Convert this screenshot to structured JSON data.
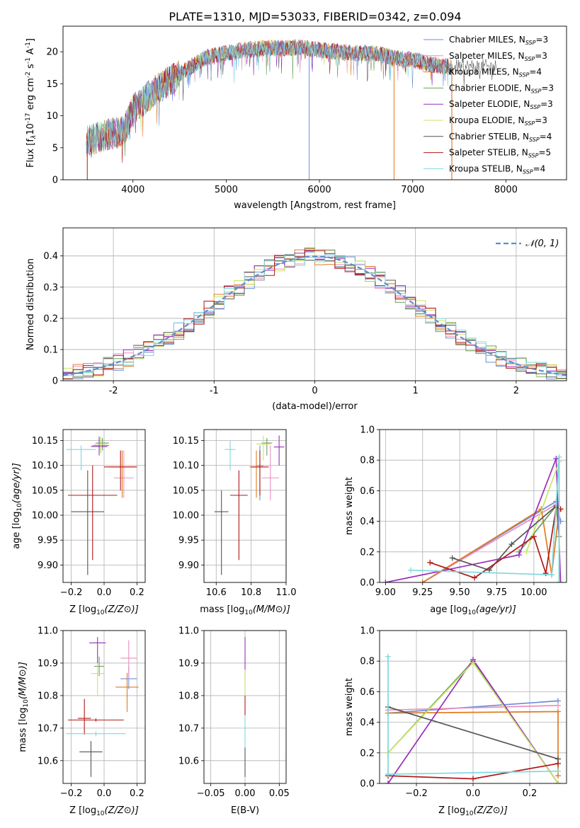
{
  "title": "PLATE=1310, MJD=53033, FIBERID=0342, z=0.094",
  "model_names": [
    "Chabrier MILES",
    "Salpeter MILES",
    "Kroupa MILES",
    "Chabrier ELODIE",
    "Salpeter ELODIE",
    "Kroupa ELODIE",
    "Chabrier STELIB",
    "Salpeter STELIB",
    "Kroupa STELIB"
  ],
  "model_colors": [
    "#6a8fd6",
    "#e98fc0",
    "#e07b22",
    "#6b9e5b",
    "#9a2dbb",
    "#c8e46a",
    "#555555",
    "#b01818",
    "#7fd8dd"
  ],
  "chart_data": [
    {
      "id": "spectrum",
      "type": "line",
      "xlabel": "wavelength [Angstrom, rest frame]",
      "ylabel_parts": [
        "Flux [f",
        "λ",
        "10",
        "-17",
        " erg cm",
        "-2",
        " s",
        "-1",
        " A",
        "-1",
        "]"
      ],
      "xlim": [
        3250,
        8650
      ],
      "ylim": [
        0,
        24
      ],
      "xticks": [
        4000,
        5000,
        6000,
        7000,
        8000
      ],
      "yticks": [
        0,
        5,
        10,
        15,
        20
      ],
      "continuum_x": [
        3500,
        3700,
        3900,
        4000,
        4200,
        4400,
        4600,
        4800,
        5000,
        5200,
        5400,
        5600,
        5800,
        6000,
        6200,
        6400,
        6600,
        6800,
        7000,
        7200,
        7400
      ],
      "continuum_y": [
        6,
        7,
        7.5,
        11,
        13.5,
        15.5,
        17.5,
        19.2,
        19.8,
        20.3,
        20.5,
        20.6,
        20.7,
        20.3,
        20.0,
        19.8,
        19.8,
        19.0,
        18.8,
        18.0,
        17.6
      ],
      "legend": [
        {
          "label": "Chabrier MILES, N",
          "sub": "SSP",
          "suffix": "=3"
        },
        {
          "label": "Salpeter MILES, N",
          "sub": "SSP",
          "suffix": "=3"
        },
        {
          "label": "Kroupa MILES, N",
          "sub": "SSP",
          "suffix": "=4"
        },
        {
          "label": "Chabrier ELODIE, N",
          "sub": "SSP",
          "suffix": "=3"
        },
        {
          "label": "Salpeter ELODIE, N",
          "sub": "SSP",
          "suffix": "=3"
        },
        {
          "label": "Kroupa ELODIE, N",
          "sub": "SSP",
          "suffix": "=3"
        },
        {
          "label": "Chabrier STELIB, N",
          "sub": "SSP",
          "suffix": "=4"
        },
        {
          "label": "Salpeter STELIB, N",
          "sub": "SSP",
          "suffix": "=5"
        },
        {
          "label": "Kroupa STELIB, N",
          "sub": "SSP",
          "suffix": "=4"
        }
      ]
    },
    {
      "id": "residuals",
      "type": "histogram",
      "xlabel": "(data-model)/error",
      "ylabel": "Normed distribution",
      "xlim": [
        -2.5,
        2.5
      ],
      "ylim": [
        0,
        0.49
      ],
      "xticks": [
        -2,
        -1,
        0,
        1,
        2
      ],
      "yticks": [
        0.0,
        0.1,
        0.2,
        0.3,
        0.4
      ],
      "bin_width": 0.1,
      "legend": "𝒩(0, 1)",
      "grid": true
    },
    {
      "id": "age-vs-Z",
      "type": "errorbar",
      "xlabel": "Z [log10(Z/Z⊙)]",
      "ylabel": "age  [log10(age/yr)]",
      "xlim": [
        -0.25,
        0.25
      ],
      "ylim": [
        9.865,
        10.172
      ],
      "xticks": [
        -0.2,
        0.0,
        0.2
      ],
      "xtick_labels": [
        "−0.2",
        "0.0",
        "0.2"
      ],
      "yticks": [
        9.9,
        9.95,
        10.0,
        10.05,
        10.1,
        10.15
      ],
      "ytick_labels": [
        "9.90",
        "9.95",
        "10.00",
        "10.05",
        "10.10",
        "10.15"
      ],
      "points": [
        {
          "x": -0.02,
          "xerr": 0.05,
          "y": 10.14,
          "ylo": 10.125,
          "yhi": 10.155,
          "c": 0
        },
        {
          "x": 0.12,
          "xerr": 0.06,
          "y": 10.075,
          "ylo": 10.035,
          "yhi": 10.13,
          "c": 1
        },
        {
          "x": 0.11,
          "xerr": 0.08,
          "y": 10.097,
          "ylo": 10.035,
          "yhi": 10.13,
          "c": 2
        },
        {
          "x": -0.01,
          "xerr": 0.04,
          "y": 10.145,
          "ylo": 10.13,
          "yhi": 10.155,
          "c": 3
        },
        {
          "x": -0.03,
          "xerr": 0.05,
          "y": 10.138,
          "ylo": 10.12,
          "yhi": 10.158,
          "c": 4
        },
        {
          "x": -0.02,
          "xerr": 0.04,
          "y": 10.143,
          "ylo": 10.125,
          "yhi": 10.158,
          "c": 5
        },
        {
          "x": -0.1,
          "xerr": 0.1,
          "y": 10.007,
          "ylo": 9.88,
          "yhi": 10.09,
          "c": 6
        },
        {
          "x": 0.1,
          "xerr": 0.1,
          "y": 10.097,
          "ylo": 10.05,
          "yhi": 10.13,
          "c": 7
        },
        {
          "x": -0.07,
          "xerr": 0.15,
          "y": 10.04,
          "ylo": 9.91,
          "yhi": 10.1,
          "c": 7
        },
        {
          "x": -0.14,
          "xerr": 0.09,
          "y": 10.132,
          "ylo": 10.09,
          "yhi": 10.14,
          "c": 8
        }
      ]
    },
    {
      "id": "age-vs-mass",
      "type": "errorbar",
      "xlabel": "mass [log10(M/M⊙)]",
      "xlim": [
        10.53,
        11.0
      ],
      "ylim": [
        9.865,
        10.172
      ],
      "xticks": [
        10.6,
        10.8,
        11.0
      ],
      "xtick_labels": [
        "10.6",
        "10.8",
        "11.0"
      ],
      "yticks": [
        9.9,
        9.95,
        10.0,
        10.05,
        10.1,
        10.15
      ],
      "ytick_labels": [
        "9.90",
        "9.95",
        "10.00",
        "10.05",
        "10.10",
        "10.15"
      ],
      "points": [
        {
          "x": 10.85,
          "xerr": 0.02,
          "y": 10.1,
          "ylo": 10.03,
          "yhi": 10.14,
          "c": 0
        },
        {
          "x": 10.91,
          "xerr": 0.05,
          "y": 10.075,
          "ylo": 10.03,
          "yhi": 10.14,
          "c": 1
        },
        {
          "x": 10.83,
          "xerr": 0.04,
          "y": 10.097,
          "ylo": 10.035,
          "yhi": 10.13,
          "c": 2
        },
        {
          "x": 10.89,
          "xerr": 0.03,
          "y": 10.145,
          "ylo": 10.12,
          "yhi": 10.155,
          "c": 3
        },
        {
          "x": 10.96,
          "xerr": 0.03,
          "y": 10.137,
          "ylo": 10.1,
          "yhi": 10.16,
          "c": 4
        },
        {
          "x": 10.87,
          "xerr": 0.04,
          "y": 10.143,
          "ylo": 10.11,
          "yhi": 10.16,
          "c": 5
        },
        {
          "x": 10.63,
          "xerr": 0.04,
          "y": 10.007,
          "ylo": 9.88,
          "yhi": 10.05,
          "c": 6
        },
        {
          "x": 10.85,
          "xerr": 0.05,
          "y": 10.097,
          "ylo": 10.04,
          "yhi": 10.13,
          "c": 7
        },
        {
          "x": 10.73,
          "xerr": 0.05,
          "y": 10.04,
          "ylo": 9.91,
          "yhi": 10.09,
          "c": 7
        },
        {
          "x": 10.68,
          "xerr": 0.03,
          "y": 10.132,
          "ylo": 10.09,
          "yhi": 10.15,
          "c": 8
        }
      ]
    },
    {
      "id": "weight-vs-age",
      "type": "line",
      "xlabel": "age  [log10(age/yr)]",
      "ylabel": "mass weight",
      "xlim": [
        8.96,
        10.22
      ],
      "ylim": [
        0,
        1
      ],
      "xticks": [
        9.0,
        9.25,
        9.5,
        9.75,
        10.0
      ],
      "xtick_labels": [
        "9.00",
        "9.25",
        "9.50",
        "9.75",
        "10.00"
      ],
      "yticks": [
        0,
        0.2,
        0.4,
        0.6,
        0.8,
        1.0
      ],
      "ytick_labels": [
        "0.0",
        "0.2",
        "0.4",
        "0.6",
        "0.8",
        "1.0"
      ],
      "series": [
        {
          "c": 0,
          "x": [
            9.25,
            10.15,
            10.18
          ],
          "y": [
            0.0,
            0.53,
            0.4
          ]
        },
        {
          "c": 1,
          "x": [
            9.25,
            10.15,
            10.17
          ],
          "y": [
            0.0,
            0.51,
            0.47
          ]
        },
        {
          "c": 2,
          "x": [
            9.25,
            10.05,
            10.12,
            10.17
          ],
          "y": [
            0.0,
            0.48,
            0.05,
            0.47
          ]
        },
        {
          "c": 3,
          "x": [
            9.9,
            10.15,
            10.17
          ],
          "y": [
            0.2,
            0.5,
            0.3
          ]
        },
        {
          "c": 4,
          "x": [
            9.0,
            9.9,
            10.15,
            10.18
          ],
          "y": [
            0.0,
            0.18,
            0.81,
            0.0
          ]
        },
        {
          "c": 5,
          "x": [
            9.95,
            10.17,
            10.17
          ],
          "y": [
            0.2,
            0.79,
            0.0
          ]
        },
        {
          "c": 6,
          "x": [
            9.45,
            9.7,
            9.85,
            10.15
          ],
          "y": [
            0.16,
            0.08,
            0.25,
            0.5
          ]
        },
        {
          "c": 7,
          "x": [
            9.3,
            9.6,
            10.0,
            10.08,
            10.15,
            10.18
          ],
          "y": [
            0.13,
            0.03,
            0.3,
            0.06,
            0.49,
            0.48
          ]
        },
        {
          "c": 8,
          "x": [
            9.17,
            10.12,
            10.17,
            10.17
          ],
          "y": [
            0.08,
            0.05,
            0.82,
            0.0
          ]
        }
      ]
    },
    {
      "id": "mass-vs-Z",
      "type": "errorbar",
      "xlabel": "Z [log10(Z/Z⊙)]",
      "ylabel": "mass [log10(M/M⊙)]",
      "xlim": [
        -0.25,
        0.25
      ],
      "ylim": [
        10.53,
        11.0
      ],
      "xticks": [
        -0.2,
        0.0,
        0.2
      ],
      "xtick_labels": [
        "−0.2",
        "0.0",
        "0.2"
      ],
      "yticks": [
        10.6,
        10.7,
        10.8,
        10.9,
        11.0
      ],
      "ytick_labels": [
        "10.6",
        "10.7",
        "10.8",
        "10.9",
        "11.0"
      ],
      "points": [
        {
          "x": 0.15,
          "xerr": 0.05,
          "y": 10.852,
          "ylo": 10.82,
          "yhi": 10.89,
          "c": 0
        },
        {
          "x": 0.15,
          "xerr": 0.05,
          "y": 10.915,
          "ylo": 10.85,
          "yhi": 10.97,
          "c": 1
        },
        {
          "x": 0.14,
          "xerr": 0.07,
          "y": 10.826,
          "ylo": 10.75,
          "yhi": 10.87,
          "c": 2
        },
        {
          "x": -0.03,
          "xerr": 0.03,
          "y": 10.89,
          "ylo": 10.86,
          "yhi": 10.92,
          "c": 3
        },
        {
          "x": -0.04,
          "xerr": 0.05,
          "y": 10.962,
          "ylo": 10.9,
          "yhi": 10.98,
          "c": 4
        },
        {
          "x": -0.04,
          "xerr": 0.04,
          "y": 10.868,
          "ylo": 10.8,
          "yhi": 10.9,
          "c": 5
        },
        {
          "x": -0.08,
          "xerr": 0.07,
          "y": 10.627,
          "ylo": 10.55,
          "yhi": 10.66,
          "c": 6
        },
        {
          "x": -0.12,
          "xerr": 0.04,
          "y": 10.73,
          "ylo": 10.68,
          "yhi": 10.79,
          "c": 7
        },
        {
          "x": -0.05,
          "xerr": 0.17,
          "y": 10.725,
          "ylo": 10.72,
          "yhi": 10.73,
          "c": 7
        },
        {
          "x": -0.05,
          "xerr": 0.18,
          "y": 10.683,
          "ylo": 10.675,
          "yhi": 10.69,
          "c": 8
        }
      ]
    },
    {
      "id": "mass-vs-ebv",
      "type": "errorbar",
      "xlabel": "E(B-V)",
      "xlim": [
        -0.06,
        0.06
      ],
      "ylim": [
        10.53,
        11.0
      ],
      "xticks": [
        -0.05,
        0.0,
        0.05
      ],
      "xtick_labels": [
        "−0.05",
        "0.00",
        "0.05"
      ],
      "yticks": [
        10.6,
        10.7,
        10.8,
        10.9,
        11.0
      ],
      "ytick_labels": [
        "10.6",
        "10.7",
        "10.8",
        "10.9",
        "11.0"
      ],
      "points": [
        {
          "x": 0.0,
          "xerr": 0.0,
          "y": 10.9,
          "ylo": 10.85,
          "yhi": 10.98,
          "c": 4
        },
        {
          "x": 0.0,
          "xerr": 0.0,
          "y": 10.85,
          "ylo": 10.8,
          "yhi": 10.88,
          "c": 5
        },
        {
          "x": 0.0,
          "xerr": 0.0,
          "y": 10.78,
          "ylo": 10.74,
          "yhi": 10.8,
          "c": 7
        },
        {
          "x": 0.0,
          "xerr": 0.0,
          "y": 10.7,
          "ylo": 10.64,
          "yhi": 10.73,
          "c": 8
        },
        {
          "x": 0.0,
          "xerr": 0.0,
          "y": 10.6,
          "ylo": 10.55,
          "yhi": 10.64,
          "c": 6
        }
      ]
    },
    {
      "id": "weight-vs-Z",
      "type": "line",
      "xlabel": "Z [log10(Z/Z⊙)]",
      "ylabel": "mass weight",
      "xlim": [
        -0.33,
        0.33
      ],
      "ylim": [
        0,
        1
      ],
      "xticks": [
        -0.2,
        0.0,
        0.2
      ],
      "xtick_labels": [
        "−0.2",
        "0.0",
        "0.2"
      ],
      "yticks": [
        0,
        0.2,
        0.4,
        0.6,
        0.8,
        1.0
      ],
      "ytick_labels": [
        "0.0",
        "0.2",
        "0.4",
        "0.6",
        "0.8",
        "1.0"
      ],
      "series": [
        {
          "c": 0,
          "x": [
            -0.3,
            0.3
          ],
          "y": [
            0.46,
            0.54
          ]
        },
        {
          "c": 1,
          "x": [
            -0.3,
            0.3
          ],
          "y": [
            0.48,
            0.51
          ]
        },
        {
          "c": 2,
          "x": [
            -0.3,
            0.3,
            0.3
          ],
          "y": [
            0.46,
            0.47,
            0.05
          ]
        },
        {
          "c": 3,
          "x": [
            -0.3,
            0.0,
            0.3
          ],
          "y": [
            0.2,
            0.8,
            0.0
          ]
        },
        {
          "c": 4,
          "x": [
            -0.3,
            0.0,
            0.3
          ],
          "y": [
            0.0,
            0.81,
            0.0
          ]
        },
        {
          "c": 5,
          "x": [
            -0.3,
            0.0,
            0.3
          ],
          "y": [
            0.2,
            0.79,
            0.0
          ]
        },
        {
          "c": 6,
          "x": [
            -0.3,
            0.3
          ],
          "y": [
            0.5,
            0.16
          ]
        },
        {
          "c": 7,
          "x": [
            -0.3,
            0.0,
            0.3
          ],
          "y": [
            0.05,
            0.03,
            0.13
          ]
        },
        {
          "c": 8,
          "x": [
            -0.3,
            -0.3,
            0.3
          ],
          "y": [
            0.83,
            0.06,
            0.08
          ]
        }
      ]
    }
  ]
}
